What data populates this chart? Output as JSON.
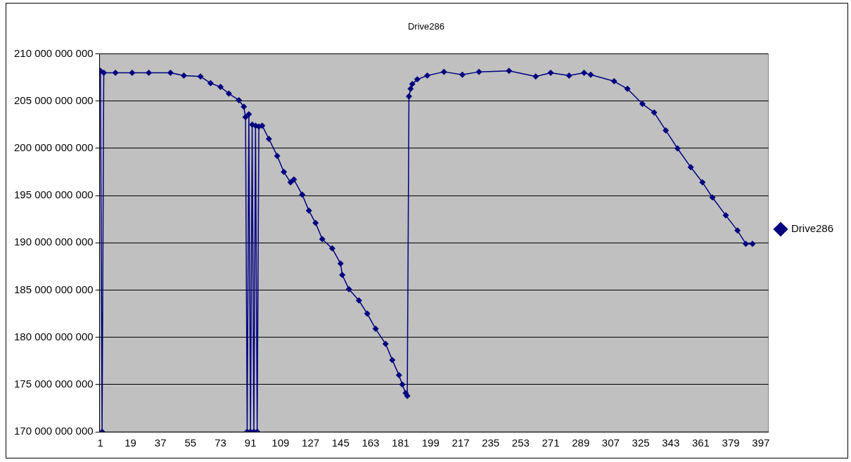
{
  "chart_data": {
    "type": "line",
    "title": "Drive286",
    "xlim": [
      0.5,
      401.5
    ],
    "xticks": [
      1,
      19,
      37,
      55,
      73,
      91,
      109,
      127,
      145,
      163,
      181,
      199,
      217,
      235,
      253,
      271,
      289,
      307,
      325,
      343,
      361,
      379,
      397
    ],
    "ylim": [
      170000000000,
      210000000000
    ],
    "yticks": [
      {
        "value": 170000000000,
        "label": "170 000 000 000"
      },
      {
        "value": 175000000000,
        "label": "175 000 000 000"
      },
      {
        "value": 180000000000,
        "label": "180 000 000 000"
      },
      {
        "value": 185000000000,
        "label": "185 000 000 000"
      },
      {
        "value": 190000000000,
        "label": "190 000 000 000"
      },
      {
        "value": 195000000000,
        "label": "195 000 000 000"
      },
      {
        "value": 200000000000,
        "label": "200 000 000 000"
      },
      {
        "value": 205000000000,
        "label": "205 000 000 000"
      },
      {
        "value": 210000000000,
        "label": "210 000 000 000"
      }
    ],
    "grid": "y",
    "legend": "right",
    "marker": "diamond",
    "line_style": "solid",
    "series": [
      {
        "name": "Drive286",
        "color": "#000080",
        "x": [
          1,
          2,
          3,
          10,
          20,
          30,
          43,
          51,
          61,
          67,
          73,
          78,
          84,
          87,
          88,
          89,
          90,
          91,
          92,
          93,
          94,
          95,
          96,
          98,
          102,
          107,
          111,
          115,
          117,
          122,
          126,
          130,
          134,
          140,
          145,
          146,
          150,
          156,
          161,
          166,
          172,
          176,
          180,
          182,
          184,
          185,
          186,
          187,
          188,
          191,
          197,
          207,
          218,
          228,
          246,
          262,
          271,
          282,
          291,
          295,
          309,
          317,
          326,
          333,
          340,
          347,
          355,
          362,
          368,
          376,
          383,
          388,
          392
        ],
        "values": [
          208200000000,
          170000000000,
          208000000000,
          208000000000,
          208000000000,
          208000000000,
          208000000000,
          207700000000,
          207600000000,
          206900000000,
          206500000000,
          205800000000,
          205100000000,
          204400000000,
          203300000000,
          170000000000,
          203600000000,
          170000000000,
          202500000000,
          170000000000,
          202400000000,
          170000000000,
          202300000000,
          202400000000,
          201000000000,
          199200000000,
          197500000000,
          196400000000,
          196700000000,
          195100000000,
          193400000000,
          192100000000,
          190400000000,
          189400000000,
          187800000000,
          186600000000,
          185100000000,
          183900000000,
          182500000000,
          180900000000,
          179300000000,
          177600000000,
          176000000000,
          175000000000,
          174100000000,
          173800000000,
          205500000000,
          206300000000,
          206800000000,
          207300000000,
          207700000000,
          208100000000,
          207800000000,
          208100000000,
          208200000000,
          207600000000,
          208000000000,
          207700000000,
          208000000000,
          207800000000,
          207100000000,
          206300000000,
          204700000000,
          203800000000,
          201900000000,
          200000000000,
          198000000000,
          196400000000,
          194800000000,
          192900000000,
          191300000000,
          189900000000,
          189900000000
        ]
      }
    ]
  }
}
